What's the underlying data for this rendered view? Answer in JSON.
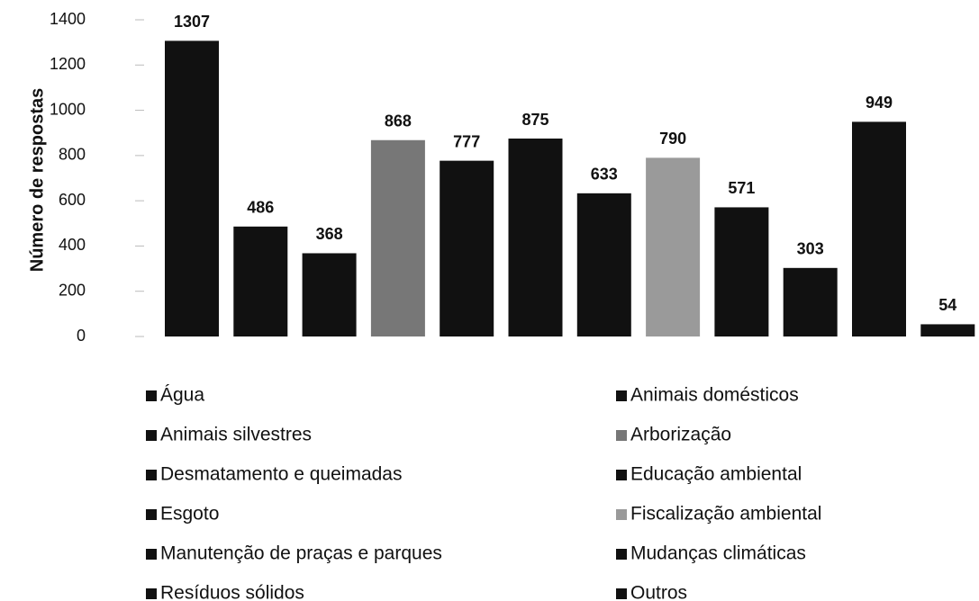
{
  "chart_data": {
    "type": "bar",
    "y_label": "Número de respostas",
    "categories": [
      "Água",
      "Animais domésticos",
      "Animais silvestres",
      "Arborização",
      "Desmatamento e queimadas",
      "Educação ambiental",
      "Esgoto",
      "Fiscalização ambiental",
      "Manutenção de praças e parques",
      "Mudanças climáticas",
      "Resíduos sólidos",
      "Outros"
    ],
    "values": [
      1307,
      486,
      368,
      868,
      777,
      875,
      633,
      790,
      571,
      303,
      949,
      54
    ],
    "colors": [
      "#111111",
      "#111111",
      "#111111",
      "#777777",
      "#111111",
      "#111111",
      "#111111",
      "#9a9a9a",
      "#111111",
      "#111111",
      "#111111",
      "#111111"
    ],
    "ylim": [
      0,
      1400
    ],
    "yticks": [
      0,
      200,
      400,
      600,
      800,
      1000,
      1200,
      1400
    ]
  }
}
